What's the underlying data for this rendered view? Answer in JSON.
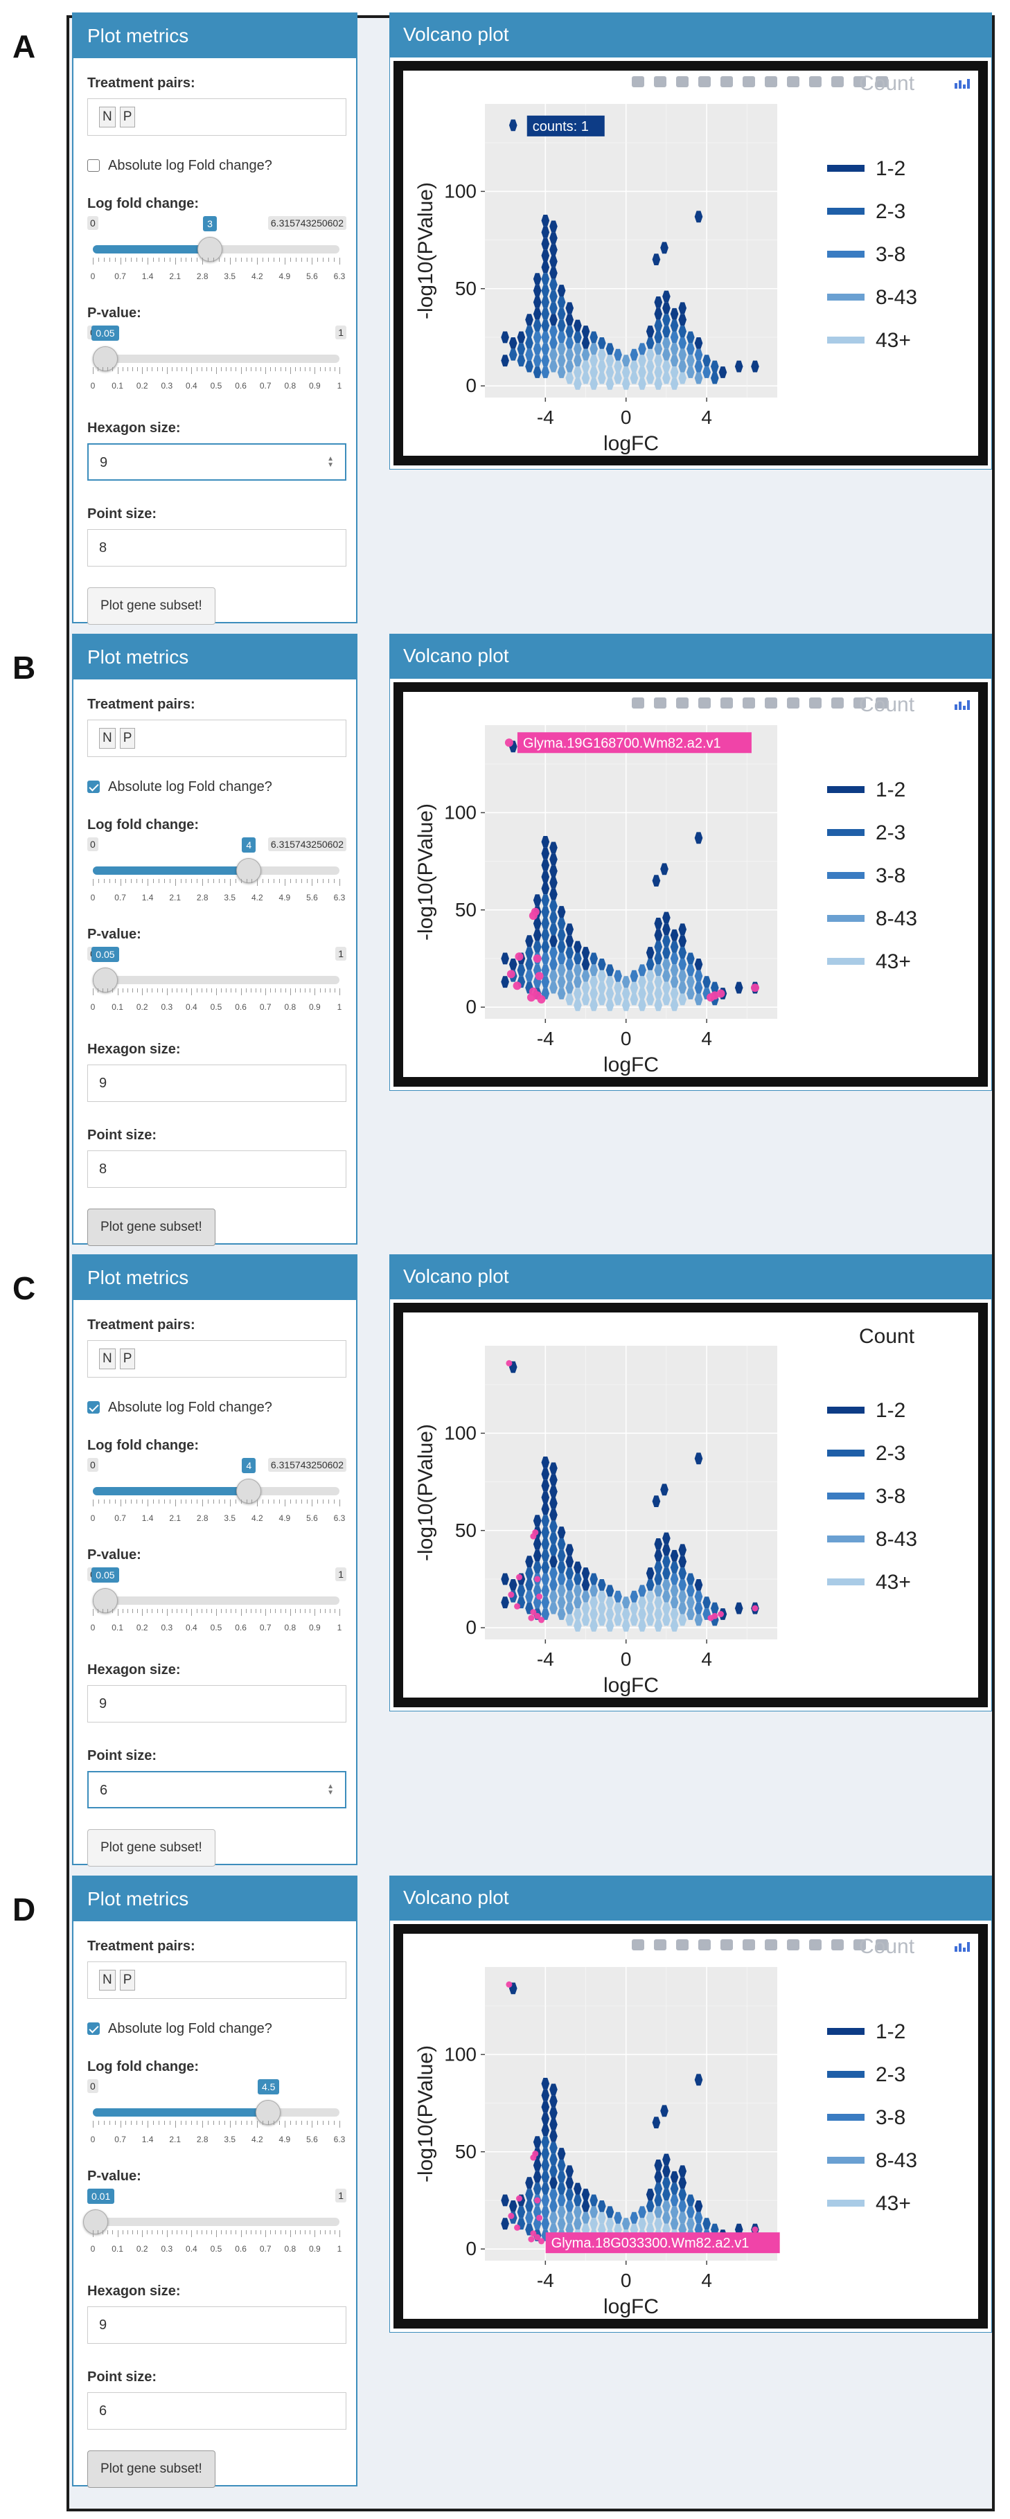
{
  "panels": [
    {
      "letter": "A",
      "sidebar": {
        "title": "Plot metrics",
        "treatment_label": "Treatment pairs:",
        "treatment_pairs": [
          "N",
          "P"
        ],
        "absolute_label": "Absolute log Fold change?",
        "absolute_checked": false,
        "lfc_label": "Log fold change:",
        "lfc_min": "0",
        "lfc_value": "3",
        "lfc_max": "6.315743250602",
        "lfc_fraction": 0.475,
        "lfc_ticks": [
          "0",
          "0.7",
          "1.4",
          "2.1",
          "2.8",
          "3.5",
          "4.2",
          "4.9",
          "5.6",
          "6.3"
        ],
        "pval_label": "P-value:",
        "pval_min": "0",
        "pval_value": "0.05",
        "pval_max": "1",
        "pval_fraction": 0.05,
        "pval_ticks": [
          "0",
          "0.1",
          "0.2",
          "0.3",
          "0.4",
          "0.5",
          "0.6",
          "0.7",
          "0.8",
          "0.9",
          "1"
        ],
        "hex_label": "Hexagon size:",
        "hex_value": "9",
        "hex_focused": true,
        "point_label": "Point size:",
        "point_value": "8",
        "point_focused": false,
        "button_label": "Plot gene subset!",
        "button_pressed": false
      },
      "plot": {
        "title": "Volcano plot",
        "show_modebar": true,
        "modebar_overlap_text": "Count",
        "legend_title": "",
        "show_points": false,
        "tooltip": {
          "text": "counts:   1",
          "style": "counts",
          "near": "top-hex"
        }
      }
    },
    {
      "letter": "B",
      "sidebar": {
        "title": "Plot metrics",
        "treatment_label": "Treatment pairs:",
        "treatment_pairs": [
          "N",
          "P"
        ],
        "absolute_label": "Absolute log Fold change?",
        "absolute_checked": true,
        "lfc_label": "Log fold change:",
        "lfc_min": "0",
        "lfc_value": "4",
        "lfc_max": "6.315743250602",
        "lfc_fraction": 0.633,
        "lfc_ticks": [
          "0",
          "0.7",
          "1.4",
          "2.1",
          "2.8",
          "3.5",
          "4.2",
          "4.9",
          "5.6",
          "6.3"
        ],
        "pval_label": "P-value:",
        "pval_min": "0",
        "pval_value": "0.05",
        "pval_max": "1",
        "pval_fraction": 0.05,
        "pval_ticks": [
          "0",
          "0.1",
          "0.2",
          "0.3",
          "0.4",
          "0.5",
          "0.6",
          "0.7",
          "0.8",
          "0.9",
          "1"
        ],
        "hex_label": "Hexagon size:",
        "hex_value": "9",
        "hex_focused": false,
        "point_label": "Point size:",
        "point_value": "8",
        "point_focused": false,
        "button_label": "Plot gene subset!",
        "button_pressed": true
      },
      "plot": {
        "title": "Volcano plot",
        "show_modebar": true,
        "modebar_overlap_text": "Count",
        "legend_title": "",
        "show_points": true,
        "point_size": "large",
        "tooltip": {
          "text": "Glyma.19G168700.Wm82.a2.v1",
          "style": "gene",
          "near": "top-point"
        }
      }
    },
    {
      "letter": "C",
      "sidebar": {
        "title": "Plot metrics",
        "treatment_label": "Treatment pairs:",
        "treatment_pairs": [
          "N",
          "P"
        ],
        "absolute_label": "Absolute log Fold change?",
        "absolute_checked": true,
        "lfc_label": "Log fold change:",
        "lfc_min": "0",
        "lfc_value": "4",
        "lfc_max": "6.315743250602",
        "lfc_fraction": 0.633,
        "lfc_ticks": [
          "0",
          "0.7",
          "1.4",
          "2.1",
          "2.8",
          "3.5",
          "4.2",
          "4.9",
          "5.6",
          "6.3"
        ],
        "pval_label": "P-value:",
        "pval_min": "0",
        "pval_value": "0.05",
        "pval_max": "1",
        "pval_fraction": 0.05,
        "pval_ticks": [
          "0",
          "0.1",
          "0.2",
          "0.3",
          "0.4",
          "0.5",
          "0.6",
          "0.7",
          "0.8",
          "0.9",
          "1"
        ],
        "hex_label": "Hexagon size:",
        "hex_value": "9",
        "hex_focused": false,
        "point_label": "Point size:",
        "point_value": "6",
        "point_focused": true,
        "button_label": "Plot gene subset!",
        "button_pressed": false
      },
      "plot": {
        "title": "Volcano plot",
        "show_modebar": false,
        "modebar_overlap_text": "",
        "legend_title": "Count",
        "show_points": true,
        "point_size": "small",
        "tooltip": null
      }
    },
    {
      "letter": "D",
      "sidebar": {
        "title": "Plot metrics",
        "treatment_label": "Treatment pairs:",
        "treatment_pairs": [
          "N",
          "P"
        ],
        "absolute_label": "Absolute log Fold change?",
        "absolute_checked": true,
        "lfc_label": "Log fold change:",
        "lfc_min": "0",
        "lfc_value": "4.5",
        "lfc_max": "",
        "lfc_fraction": 0.712,
        "lfc_ticks": [
          "0",
          "0.7",
          "1.4",
          "2.1",
          "2.8",
          "3.5",
          "4.2",
          "4.9",
          "5.6",
          "6.3"
        ],
        "pval_label": "P-value:",
        "pval_min": "",
        "pval_value": "0.01",
        "pval_max": "1",
        "pval_fraction": 0.01,
        "pval_ticks": [
          "0",
          "0.1",
          "0.2",
          "0.3",
          "0.4",
          "0.5",
          "0.6",
          "0.7",
          "0.8",
          "0.9",
          "1"
        ],
        "hex_label": "Hexagon size:",
        "hex_value": "9",
        "hex_focused": false,
        "point_label": "Point size:",
        "point_value": "6",
        "point_focused": false,
        "button_label": "Plot gene subset!",
        "button_pressed": true
      },
      "plot": {
        "title": "Volcano plot",
        "show_modebar": true,
        "modebar_overlap_text": "Count",
        "legend_title": "",
        "show_points": true,
        "point_size": "small",
        "tooltip": {
          "text": "Glyma.18G033300.Wm82.a2.v1",
          "style": "gene",
          "near": "lower-point"
        }
      }
    }
  ],
  "chart_data": {
    "type": "heatmap",
    "subtype": "hexbin volcano",
    "xlabel": "logFC",
    "ylabel": "-log10(PValue)",
    "x_ticks": [
      "-4",
      "0",
      "4"
    ],
    "y_ticks": [
      "0",
      "50",
      "100"
    ],
    "xlim": [
      -7,
      7.5
    ],
    "ylim": [
      -6,
      145
    ],
    "legend_entries": [
      {
        "label": "1-2",
        "color": "#0d3c86"
      },
      {
        "label": "2-3",
        "color": "#1f5fa8"
      },
      {
        "label": "3-8",
        "color": "#3a7cc2"
      },
      {
        "label": "8-43",
        "color": "#6aa0d2"
      },
      {
        "label": "43+",
        "color": "#a9cbe6"
      }
    ],
    "hexagons": [
      {
        "x": -5.6,
        "y": 134,
        "bin": 0
      },
      {
        "x": 3.6,
        "y": 87,
        "bin": 0
      },
      {
        "x": 1.9,
        "y": 71,
        "bin": 0
      },
      {
        "x": 1.5,
        "y": 65,
        "bin": 0
      },
      {
        "x": -4,
        "y": 85,
        "bin": 0
      },
      {
        "x": -4,
        "y": 79,
        "bin": 0
      },
      {
        "x": -4,
        "y": 73,
        "bin": 0
      },
      {
        "x": -4,
        "y": 67,
        "bin": 0
      },
      {
        "x": -4,
        "y": 61,
        "bin": 0
      },
      {
        "x": -3.6,
        "y": 82,
        "bin": 0
      },
      {
        "x": -3.6,
        "y": 76,
        "bin": 0
      },
      {
        "x": -3.6,
        "y": 70,
        "bin": 0
      },
      {
        "x": -3.6,
        "y": 64,
        "bin": 0
      },
      {
        "x": -3.6,
        "y": 58,
        "bin": 0
      },
      {
        "x": -4.4,
        "y": 55,
        "bin": 0
      },
      {
        "x": -4.4,
        "y": 49,
        "bin": 0
      },
      {
        "x": -4.4,
        "y": 43,
        "bin": 0
      },
      {
        "x": -4,
        "y": 55,
        "bin": 1
      },
      {
        "x": -4,
        "y": 49,
        "bin": 1
      },
      {
        "x": -4,
        "y": 43,
        "bin": 1
      },
      {
        "x": -4,
        "y": 37,
        "bin": 1
      },
      {
        "x": -3.6,
        "y": 52,
        "bin": 1
      },
      {
        "x": -3.6,
        "y": 46,
        "bin": 1
      },
      {
        "x": -3.6,
        "y": 40,
        "bin": 1
      },
      {
        "x": -3.6,
        "y": 34,
        "bin": 0
      },
      {
        "x": -3.2,
        "y": 49,
        "bin": 0
      },
      {
        "x": -3.2,
        "y": 43,
        "bin": 1
      },
      {
        "x": -3.2,
        "y": 37,
        "bin": 1
      },
      {
        "x": -3.2,
        "y": 31,
        "bin": 1
      },
      {
        "x": -2.8,
        "y": 40,
        "bin": 0
      },
      {
        "x": -2.8,
        "y": 34,
        "bin": 0
      },
      {
        "x": -2.8,
        "y": 28,
        "bin": 1
      },
      {
        "x": -2.4,
        "y": 31,
        "bin": 0
      },
      {
        "x": -2.4,
        "y": 25,
        "bin": 1
      },
      {
        "x": -2.0,
        "y": 22,
        "bin": 0
      },
      {
        "x": -4.8,
        "y": 34,
        "bin": 0
      },
      {
        "x": -4.4,
        "y": 37,
        "bin": 0
      },
      {
        "x": -4.4,
        "y": 31,
        "bin": 1
      },
      {
        "x": -4,
        "y": 31,
        "bin": 1
      },
      {
        "x": -4.8,
        "y": 28,
        "bin": 1
      },
      {
        "x": -5.2,
        "y": 25,
        "bin": 0
      },
      {
        "x": -5.6,
        "y": 22,
        "bin": 0
      },
      {
        "x": -6.0,
        "y": 25,
        "bin": 0
      },
      {
        "x": -6.0,
        "y": 13,
        "bin": 0
      },
      {
        "x": -5.6,
        "y": 16,
        "bin": 1
      },
      {
        "x": -5.2,
        "y": 19,
        "bin": 1
      },
      {
        "x": -5.2,
        "y": 13,
        "bin": 1
      },
      {
        "x": -4.8,
        "y": 22,
        "bin": 1
      },
      {
        "x": -4.8,
        "y": 16,
        "bin": 2
      },
      {
        "x": -4.8,
        "y": 10,
        "bin": 1
      },
      {
        "x": -4.4,
        "y": 25,
        "bin": 2
      },
      {
        "x": -4.4,
        "y": 19,
        "bin": 2
      },
      {
        "x": -4.4,
        "y": 13,
        "bin": 2
      },
      {
        "x": -4.4,
        "y": 7,
        "bin": 1
      },
      {
        "x": -4,
        "y": 25,
        "bin": 2
      },
      {
        "x": -4,
        "y": 19,
        "bin": 2
      },
      {
        "x": -4,
        "y": 13,
        "bin": 2
      },
      {
        "x": -4,
        "y": 7,
        "bin": 2
      },
      {
        "x": -3.6,
        "y": 28,
        "bin": 2
      },
      {
        "x": -3.6,
        "y": 22,
        "bin": 2
      },
      {
        "x": -3.6,
        "y": 16,
        "bin": 3
      },
      {
        "x": -3.6,
        "y": 10,
        "bin": 3
      },
      {
        "x": -3.2,
        "y": 25,
        "bin": 2
      },
      {
        "x": -3.2,
        "y": 19,
        "bin": 3
      },
      {
        "x": -3.2,
        "y": 13,
        "bin": 3
      },
      {
        "x": -3.2,
        "y": 7,
        "bin": 3
      },
      {
        "x": -2.8,
        "y": 22,
        "bin": 2
      },
      {
        "x": -2.8,
        "y": 16,
        "bin": 3
      },
      {
        "x": -2.8,
        "y": 10,
        "bin": 3
      },
      {
        "x": -2.8,
        "y": 4,
        "bin": 4
      },
      {
        "x": -2.4,
        "y": 19,
        "bin": 3
      },
      {
        "x": -2.4,
        "y": 13,
        "bin": 3
      },
      {
        "x": -2.4,
        "y": 7,
        "bin": 4
      },
      {
        "x": -2.4,
        "y": 1,
        "bin": 4
      },
      {
        "x": -2.0,
        "y": 16,
        "bin": 3
      },
      {
        "x": -2.0,
        "y": 10,
        "bin": 4
      },
      {
        "x": -2.0,
        "y": 4,
        "bin": 4
      },
      {
        "x": -1.6,
        "y": 19,
        "bin": 3
      },
      {
        "x": -1.6,
        "y": 13,
        "bin": 4
      },
      {
        "x": -1.6,
        "y": 7,
        "bin": 4
      },
      {
        "x": -1.6,
        "y": 1,
        "bin": 4
      },
      {
        "x": -1.2,
        "y": 16,
        "bin": 4
      },
      {
        "x": -1.2,
        "y": 10,
        "bin": 4
      },
      {
        "x": -1.2,
        "y": 4,
        "bin": 4
      },
      {
        "x": -0.8,
        "y": 13,
        "bin": 4
      },
      {
        "x": -0.8,
        "y": 7,
        "bin": 4
      },
      {
        "x": -0.8,
        "y": 1,
        "bin": 4
      },
      {
        "x": -0.4,
        "y": 10,
        "bin": 4
      },
      {
        "x": -0.4,
        "y": 4,
        "bin": 4
      },
      {
        "x": 0,
        "y": 7,
        "bin": 4
      },
      {
        "x": 0,
        "y": 1,
        "bin": 4
      },
      {
        "x": 0.4,
        "y": 10,
        "bin": 4
      },
      {
        "x": 0.4,
        "y": 4,
        "bin": 4
      },
      {
        "x": 0.8,
        "y": 13,
        "bin": 4
      },
      {
        "x": 0.8,
        "y": 7,
        "bin": 4
      },
      {
        "x": 0.8,
        "y": 1,
        "bin": 4
      },
      {
        "x": 1.2,
        "y": 16,
        "bin": 4
      },
      {
        "x": 1.2,
        "y": 10,
        "bin": 4
      },
      {
        "x": 1.2,
        "y": 4,
        "bin": 4
      },
      {
        "x": 1.6,
        "y": 19,
        "bin": 3
      },
      {
        "x": 1.6,
        "y": 13,
        "bin": 4
      },
      {
        "x": 1.6,
        "y": 7,
        "bin": 4
      },
      {
        "x": 1.6,
        "y": 1,
        "bin": 4
      },
      {
        "x": 2.0,
        "y": 22,
        "bin": 3
      },
      {
        "x": 2.0,
        "y": 16,
        "bin": 3
      },
      {
        "x": 2.0,
        "y": 10,
        "bin": 4
      },
      {
        "x": 2.0,
        "y": 4,
        "bin": 4
      },
      {
        "x": 2.4,
        "y": 25,
        "bin": 2
      },
      {
        "x": 2.4,
        "y": 19,
        "bin": 3
      },
      {
        "x": 2.4,
        "y": 13,
        "bin": 3
      },
      {
        "x": 2.4,
        "y": 7,
        "bin": 4
      },
      {
        "x": 2.4,
        "y": 1,
        "bin": 4
      },
      {
        "x": 2.8,
        "y": 22,
        "bin": 2
      },
      {
        "x": 2.8,
        "y": 16,
        "bin": 3
      },
      {
        "x": 2.8,
        "y": 10,
        "bin": 3
      },
      {
        "x": 2.8,
        "y": 4,
        "bin": 4
      },
      {
        "x": 3.2,
        "y": 19,
        "bin": 2
      },
      {
        "x": 3.2,
        "y": 13,
        "bin": 3
      },
      {
        "x": 3.2,
        "y": 7,
        "bin": 3
      },
      {
        "x": 3.6,
        "y": 16,
        "bin": 2
      },
      {
        "x": 3.6,
        "y": 10,
        "bin": 2
      },
      {
        "x": 3.6,
        "y": 4,
        "bin": 3
      },
      {
        "x": 4.0,
        "y": 13,
        "bin": 1
      },
      {
        "x": 4.0,
        "y": 7,
        "bin": 2
      },
      {
        "x": 4.4,
        "y": 10,
        "bin": 1
      },
      {
        "x": 4.4,
        "y": 4,
        "bin": 1
      },
      {
        "x": 4.8,
        "y": 7,
        "bin": 0
      },
      {
        "x": 5.6,
        "y": 10,
        "bin": 0
      },
      {
        "x": 6.4,
        "y": 10,
        "bin": 0
      },
      {
        "x": 1.6,
        "y": 25,
        "bin": 1
      },
      {
        "x": 1.2,
        "y": 22,
        "bin": 1
      },
      {
        "x": 0.8,
        "y": 19,
        "bin": 2
      },
      {
        "x": 1.6,
        "y": 31,
        "bin": 1
      },
      {
        "x": 1.2,
        "y": 28,
        "bin": 0
      },
      {
        "x": 2.0,
        "y": 28,
        "bin": 1
      },
      {
        "x": 2.0,
        "y": 34,
        "bin": 1
      },
      {
        "x": 2.4,
        "y": 31,
        "bin": 1
      },
      {
        "x": 2.4,
        "y": 37,
        "bin": 0
      },
      {
        "x": 1.6,
        "y": 37,
        "bin": 0
      },
      {
        "x": 2.8,
        "y": 28,
        "bin": 1
      },
      {
        "x": 2.8,
        "y": 34,
        "bin": 0
      },
      {
        "x": 2.0,
        "y": 40,
        "bin": 0
      },
      {
        "x": 2.0,
        "y": 46,
        "bin": 0
      },
      {
        "x": 1.6,
        "y": 43,
        "bin": 0
      },
      {
        "x": 2.8,
        "y": 40,
        "bin": 0
      },
      {
        "x": 3.2,
        "y": 25,
        "bin": 1
      },
      {
        "x": 3.6,
        "y": 22,
        "bin": 0
      },
      {
        "x": -2.0,
        "y": 28,
        "bin": 0
      },
      {
        "x": -1.6,
        "y": 25,
        "bin": 1
      },
      {
        "x": -1.2,
        "y": 22,
        "bin": 1
      },
      {
        "x": -0.8,
        "y": 19,
        "bin": 1
      },
      {
        "x": -0.4,
        "y": 16,
        "bin": 2
      },
      {
        "x": 0,
        "y": 13,
        "bin": 3
      },
      {
        "x": 0.4,
        "y": 16,
        "bin": 2
      }
    ],
    "points": [
      {
        "x": -5.8,
        "y": 136
      },
      {
        "x": -4.5,
        "y": 49
      },
      {
        "x": -4.6,
        "y": 47
      },
      {
        "x": -5.3,
        "y": 26
      },
      {
        "x": -4.4,
        "y": 25
      },
      {
        "x": -5.7,
        "y": 17
      },
      {
        "x": -4.3,
        "y": 16
      },
      {
        "x": -5.4,
        "y": 11
      },
      {
        "x": -4.6,
        "y": 8
      },
      {
        "x": -4.4,
        "y": 6
      },
      {
        "x": -4.7,
        "y": 5
      },
      {
        "x": -4.2,
        "y": 4
      },
      {
        "x": 4.4,
        "y": 6
      },
      {
        "x": 4.7,
        "y": 7
      },
      {
        "x": 4.2,
        "y": 5
      },
      {
        "x": 6.4,
        "y": 10
      }
    ]
  }
}
